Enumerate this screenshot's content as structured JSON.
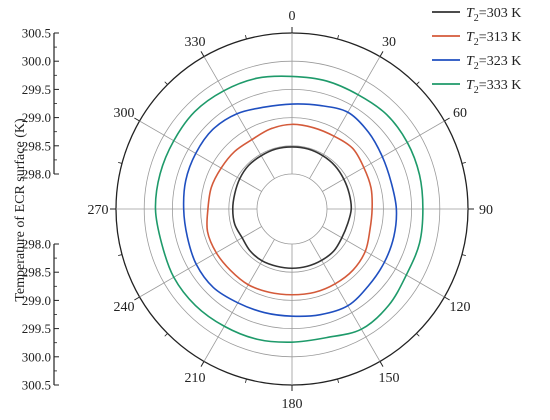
{
  "chart_data": {
    "type": "polar-line",
    "title": "",
    "radial_axis": {
      "label": "Temperature of ECR surface (K)",
      "range": [
        298.0,
        300.5
      ],
      "ticks": [
        "298.0",
        "298.5",
        "299.0",
        "299.5",
        "300.0",
        "300.5"
      ],
      "tick_values": [
        298.0,
        298.5,
        299.0,
        299.5,
        300.0,
        300.5
      ]
    },
    "angular_axis": {
      "direction": "clockwise",
      "zero_at": "top",
      "ticks": [
        "0",
        "30",
        "60",
        "90",
        "120",
        "150",
        "180",
        "210",
        "240",
        "270",
        "300",
        "330"
      ],
      "tick_values": [
        0,
        30,
        60,
        90,
        120,
        150,
        180,
        210,
        240,
        270,
        300,
        330
      ]
    },
    "legend": {
      "placement": "top-right"
    },
    "grid": true,
    "theta": [
      0,
      15,
      30,
      45,
      60,
      75,
      90,
      105,
      120,
      135,
      150,
      165,
      180,
      195,
      210,
      225,
      240,
      255,
      270,
      285,
      300,
      315,
      330,
      345
    ],
    "series": [
      {
        "label_prefix": "T",
        "label_sub": "2",
        "label_suffix": "=303 K",
        "color": "#333333",
        "values": [
          298.48,
          298.48,
          298.47,
          298.46,
          298.44,
          298.43,
          298.43,
          298.4,
          298.4,
          298.43,
          298.43,
          298.43,
          298.43,
          298.43,
          298.44,
          298.43,
          298.4,
          298.43,
          298.43,
          298.43,
          298.45,
          298.47,
          298.47,
          298.48
        ]
      },
      {
        "label_prefix": "T",
        "label_sub": "2",
        "label_suffix": "=313 K",
        "color": "#d45a3a",
        "values": [
          298.88,
          298.87,
          298.87,
          298.9,
          298.85,
          298.83,
          298.8,
          298.81,
          298.88,
          298.91,
          298.91,
          298.91,
          298.9,
          298.91,
          298.93,
          298.92,
          298.93,
          298.93,
          298.87,
          298.86,
          298.83,
          298.82,
          298.8,
          298.85
        ]
      },
      {
        "label_prefix": "T",
        "label_sub": "2",
        "label_suffix": "=323 K",
        "color": "#1f4fc0",
        "values": [
          299.24,
          299.28,
          299.36,
          299.3,
          299.23,
          299.2,
          299.23,
          299.25,
          299.27,
          299.3,
          299.36,
          299.32,
          299.28,
          299.28,
          299.3,
          299.35,
          299.34,
          299.3,
          299.3,
          299.33,
          299.35,
          299.37,
          299.33,
          299.25
        ]
      },
      {
        "label_prefix": "T",
        "label_sub": "2",
        "label_suffix": "=333 K",
        "color": "#1e9a6a",
        "values": [
          299.73,
          299.73,
          299.72,
          299.75,
          299.74,
          299.72,
          299.7,
          299.72,
          299.72,
          299.8,
          299.84,
          299.74,
          299.74,
          299.77,
          299.78,
          299.8,
          299.8,
          299.77,
          299.8,
          299.8,
          299.8,
          299.82,
          299.8,
          299.78
        ]
      }
    ]
  }
}
